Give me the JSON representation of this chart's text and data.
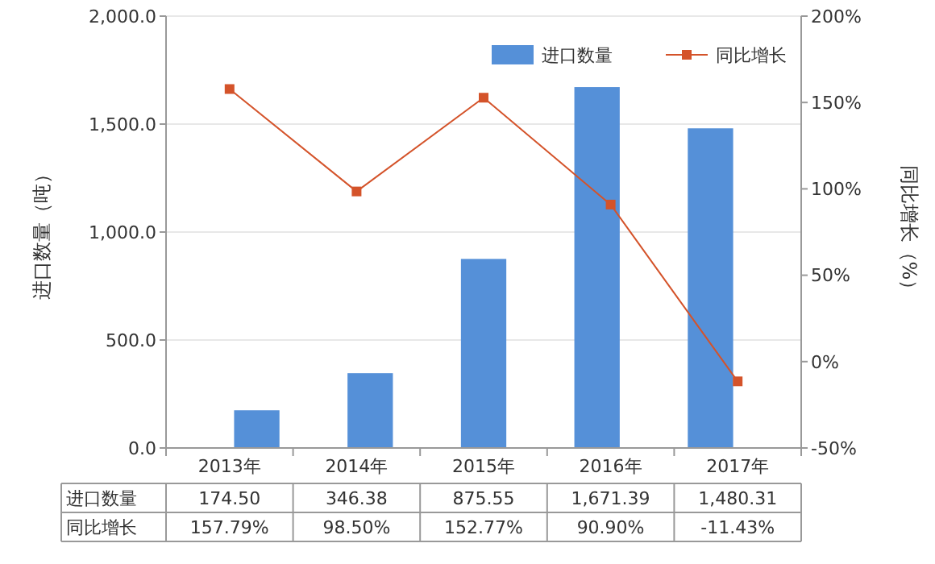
{
  "chart_data": {
    "type": "bar",
    "categories": [
      "2013年",
      "2014年",
      "2015年",
      "2016年",
      "2017年"
    ],
    "ylabel": "进口数量（吨）",
    "y2label": "同比增长（%）",
    "ylim": [
      0,
      2000
    ],
    "yticks": [
      {
        "value": 0,
        "label": "0.0"
      },
      {
        "value": 500,
        "label": "500.0"
      },
      {
        "value": 1000,
        "label": "1,000.0"
      },
      {
        "value": 1500,
        "label": "1,500.0"
      },
      {
        "value": 2000,
        "label": "2,000.0"
      }
    ],
    "y2lim": [
      -50,
      200
    ],
    "y2ticks": [
      {
        "value": -50,
        "label": "-50%"
      },
      {
        "value": 0,
        "label": "0%"
      },
      {
        "value": 50,
        "label": "50%"
      },
      {
        "value": 100,
        "label": "100%"
      },
      {
        "value": 150,
        "label": "150%"
      },
      {
        "value": 200,
        "label": "200%"
      }
    ],
    "grid": "y",
    "legend": "top right",
    "series": [
      {
        "name": "进口数量",
        "color": "#5590d8",
        "values": [
          174.5,
          346.38,
          875.55,
          1671.39,
          1480.31
        ],
        "value_labels": [
          "174.50",
          "346.38",
          "875.55",
          "1,671.39",
          "1,480.31"
        ]
      },
      {
        "name": "同比增长",
        "type": "line",
        "axis": "y2",
        "color": "#d4532a",
        "marker": "square",
        "line_style": "solid",
        "values": [
          157.79,
          98.5,
          152.77,
          90.9,
          -11.43
        ],
        "value_labels": [
          "157.79%",
          "98.50%",
          "152.77%",
          "90.90%",
          "-11.43%"
        ]
      }
    ]
  }
}
